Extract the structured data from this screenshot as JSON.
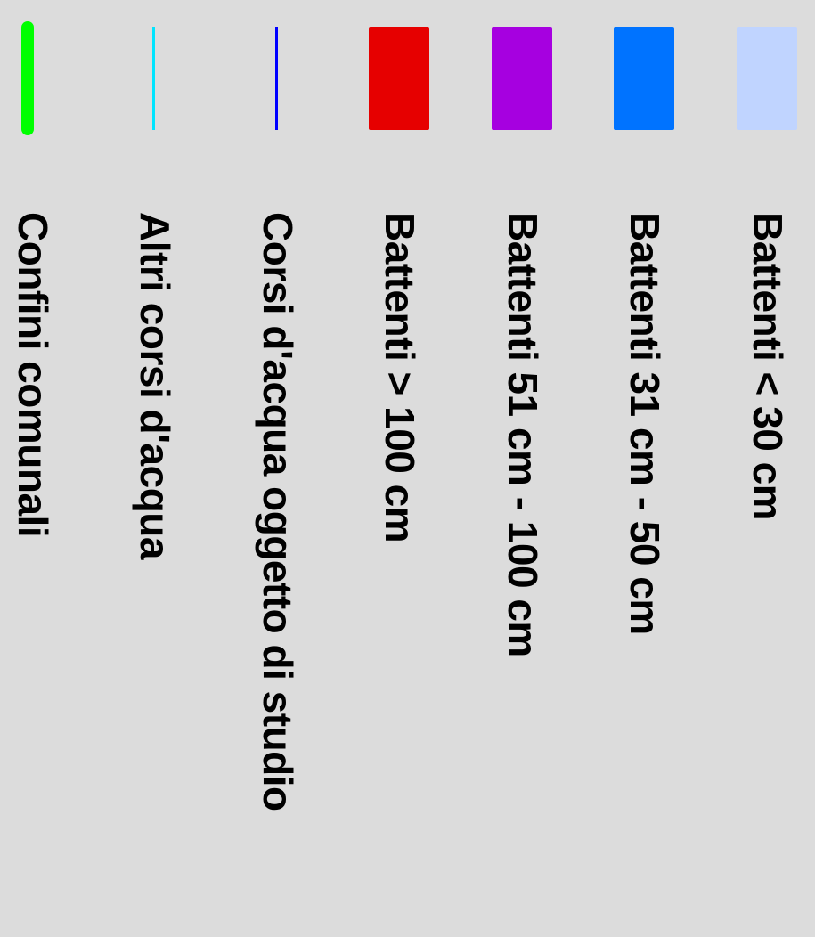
{
  "legend": {
    "items": [
      {
        "label": "Battenti < 30 cm",
        "symbol": "swatch",
        "color": "#c0d4ff"
      },
      {
        "label": "Battenti 31 cm - 50 cm",
        "symbol": "swatch",
        "color": "#0073ff"
      },
      {
        "label": "Battenti 51 cm - 100 cm",
        "symbol": "swatch",
        "color": "#a600e0"
      },
      {
        "label": "Battenti > 100 cm",
        "symbol": "swatch",
        "color": "#e60000"
      },
      {
        "label": "Corsi d'acqua oggetto di studio",
        "symbol": "thin-line",
        "color": "#0000ff"
      },
      {
        "label": "Altri corsi d'acqua",
        "symbol": "thin-line",
        "color": "#00e5ff"
      },
      {
        "label": "Confini comunali",
        "symbol": "thick-line",
        "color": "#00ff00"
      }
    ]
  }
}
